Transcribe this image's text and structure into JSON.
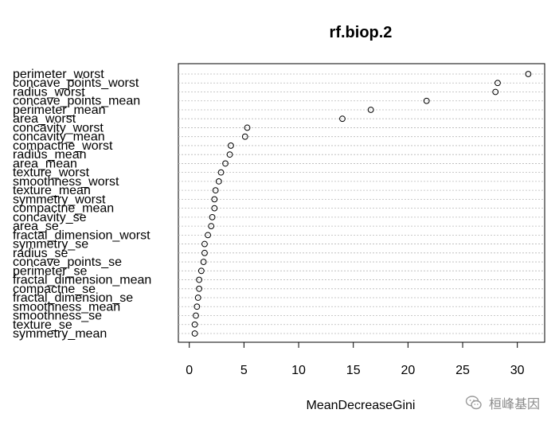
{
  "chart_data": {
    "type": "scatter",
    "title": "rf.biop.2",
    "xlabel": "MeanDecreaseGini",
    "ylabel": "",
    "xlim": [
      -1,
      32.5
    ],
    "xticks": [
      "0",
      "5",
      "10",
      "15",
      "20",
      "25",
      "30"
    ],
    "grid": "dotted horizontal guide lines",
    "points": [
      {
        "label": "perimeter_worst",
        "value": 31.0
      },
      {
        "label": "concave_points_worst",
        "value": 28.2
      },
      {
        "label": "radius_worst",
        "value": 28.0
      },
      {
        "label": "concave_points_mean",
        "value": 21.7
      },
      {
        "label": "perimeter_mean",
        "value": 16.6
      },
      {
        "label": "area_worst",
        "value": 14.0
      },
      {
        "label": "concavity_worst",
        "value": 5.3
      },
      {
        "label": "concavity_mean",
        "value": 5.1
      },
      {
        "label": "compactne_worst",
        "value": 3.8
      },
      {
        "label": "radius_mean",
        "value": 3.7
      },
      {
        "label": "area_mean",
        "value": 3.3
      },
      {
        "label": "texture_worst",
        "value": 2.9
      },
      {
        "label": "smoothness_worst",
        "value": 2.7
      },
      {
        "label": "texture_mean",
        "value": 2.4
      },
      {
        "label": "symmetry_worst",
        "value": 2.3
      },
      {
        "label": "compactne_mean",
        "value": 2.3
      },
      {
        "label": "concavity_se",
        "value": 2.1
      },
      {
        "label": "area_se",
        "value": 2.0
      },
      {
        "label": "fractal_dimension_worst",
        "value": 1.7
      },
      {
        "label": "symmetry_se",
        "value": 1.4
      },
      {
        "label": "radius_se",
        "value": 1.4
      },
      {
        "label": "concave_points_se",
        "value": 1.3
      },
      {
        "label": "perimeter_se",
        "value": 1.1
      },
      {
        "label": "fractal_dimension_mean",
        "value": 0.9
      },
      {
        "label": "compactne_se",
        "value": 0.9
      },
      {
        "label": "fractal_dimension_se",
        "value": 0.8
      },
      {
        "label": "smoothness_mean",
        "value": 0.7
      },
      {
        "label": "smoothness_se",
        "value": 0.6
      },
      {
        "label": "texture_se",
        "value": 0.5
      },
      {
        "label": "symmetry_mean",
        "value": 0.5
      }
    ]
  },
  "watermark": {
    "text": "桓峰基因",
    "icon": "wechat-icon"
  }
}
